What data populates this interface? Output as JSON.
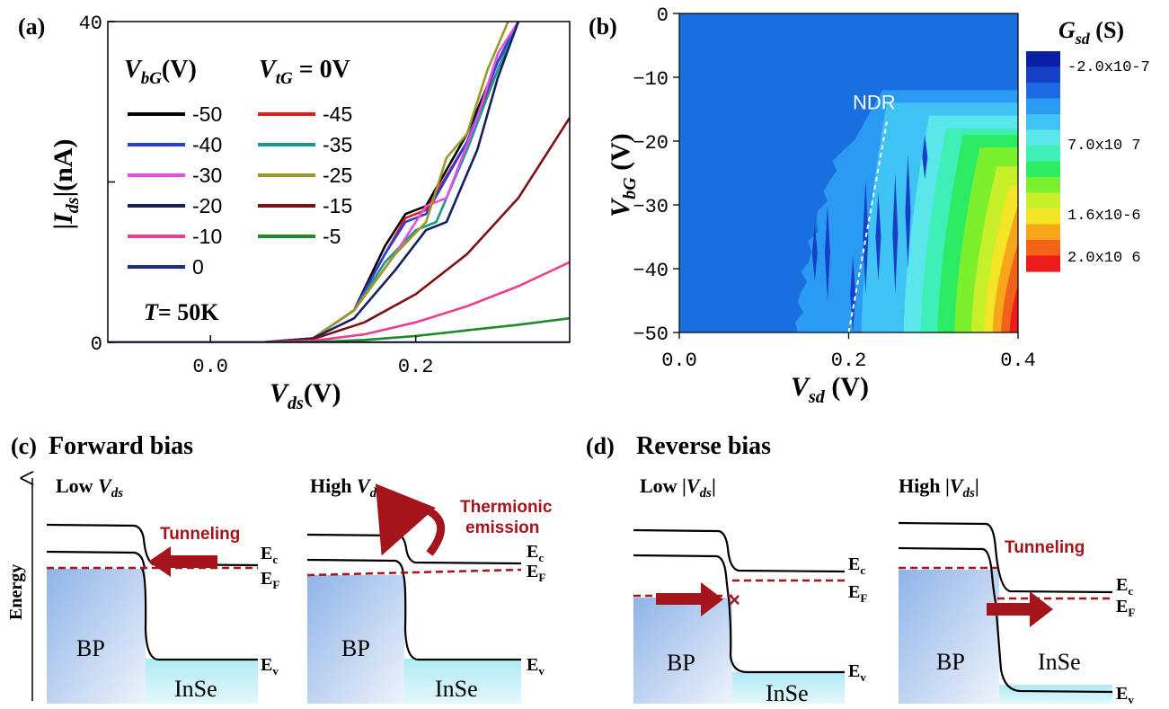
{
  "panel_labels": {
    "a": "(a)",
    "b": "(b)",
    "c": "(c)",
    "d": "(d)"
  },
  "chart_data": [
    {
      "type": "line",
      "panel": "a",
      "xlabel": "V_ds(V)",
      "ylabel": "|I_ds|(nA)",
      "xlim": [
        -0.1,
        0.35
      ],
      "ylim": [
        0,
        40
      ],
      "x_ticks": [
        0.0,
        0.2
      ],
      "y_ticks": [
        0,
        40
      ],
      "legend_title": "V_bG(V)",
      "legend_title_2": "V_tG = 0V",
      "annotation": "T= 50K",
      "series": [
        {
          "name": "-50",
          "color": "#000000",
          "x": [
            -0.1,
            0.05,
            0.1,
            0.14,
            0.17,
            0.19,
            0.21,
            0.25,
            0.28,
            0.3
          ],
          "y": [
            0,
            0,
            0.5,
            4,
            12,
            16,
            17,
            26,
            35,
            40
          ]
        },
        {
          "name": "-45",
          "color": "#e21b1b",
          "x": [
            -0.1,
            0.05,
            0.1,
            0.14,
            0.17,
            0.19,
            0.21,
            0.25,
            0.28,
            0.3
          ],
          "y": [
            0,
            0,
            0.5,
            4,
            11,
            15.5,
            16.5,
            25,
            34,
            40
          ]
        },
        {
          "name": "-40",
          "color": "#2c3ad6",
          "x": [
            -0.1,
            0.05,
            0.1,
            0.14,
            0.17,
            0.19,
            0.21,
            0.25,
            0.28,
            0.3
          ],
          "y": [
            0,
            0,
            0.5,
            4,
            11,
            15,
            16,
            25,
            35,
            40
          ]
        },
        {
          "name": "-35",
          "color": "#1e9690",
          "x": [
            -0.1,
            0.05,
            0.1,
            0.14,
            0.17,
            0.2,
            0.22,
            0.25,
            0.28,
            0.3
          ],
          "y": [
            0,
            0,
            0.5,
            4,
            10,
            14,
            15,
            24,
            34,
            40
          ]
        },
        {
          "name": "-30",
          "color": "#e44ee4",
          "x": [
            -0.1,
            0.05,
            0.1,
            0.14,
            0.18,
            0.21,
            0.23,
            0.26,
            0.28,
            0.3
          ],
          "y": [
            0,
            0,
            0.5,
            4,
            11,
            17,
            18,
            28,
            36,
            40
          ]
        },
        {
          "name": "-25",
          "color": "#9a9a28",
          "x": [
            -0.1,
            0.05,
            0.1,
            0.14,
            0.18,
            0.21,
            0.23,
            0.25,
            0.27,
            0.29
          ],
          "y": [
            0,
            0,
            0.5,
            4,
            11,
            15,
            23,
            26,
            34,
            40
          ]
        },
        {
          "name": "-20",
          "color": "#13215c",
          "x": [
            -0.1,
            0.05,
            0.1,
            0.14,
            0.18,
            0.21,
            0.23,
            0.26,
            0.28,
            0.3
          ],
          "y": [
            0,
            0,
            0.5,
            3,
            9,
            14,
            15,
            24,
            33,
            40
          ]
        },
        {
          "name": "-15",
          "color": "#7c1216",
          "x": [
            -0.1,
            0.05,
            0.1,
            0.15,
            0.2,
            0.25,
            0.3,
            0.35
          ],
          "y": [
            0,
            0,
            0.4,
            2.5,
            6,
            11,
            18,
            28
          ]
        },
        {
          "name": "-10",
          "color": "#ea3f8e",
          "x": [
            -0.1,
            0.05,
            0.1,
            0.15,
            0.2,
            0.25,
            0.3,
            0.35
          ],
          "y": [
            0,
            0,
            0.2,
            1,
            2.5,
            4.5,
            7,
            10
          ]
        },
        {
          "name": "-5",
          "color": "#1f8a2c",
          "x": [
            -0.1,
            0.05,
            0.1,
            0.15,
            0.2,
            0.25,
            0.3,
            0.35
          ],
          "y": [
            0,
            0,
            0.05,
            0.3,
            0.8,
            1.5,
            2.2,
            3
          ]
        },
        {
          "name": "0",
          "color": "#1b2a8c",
          "x": [
            -0.1,
            0.35
          ],
          "y": [
            0,
            0
          ]
        }
      ]
    },
    {
      "type": "heatmap",
      "panel": "b",
      "xlabel": "V_sd (V)",
      "ylabel": "V_bG (V)",
      "xlim": [
        0.0,
        0.4
      ],
      "ylim": [
        -50,
        0
      ],
      "x_ticks": [
        0.0,
        0.2,
        0.4
      ],
      "y_ticks": [
        0,
        -10,
        -20,
        -30,
        -40,
        -50
      ],
      "colorbar_title": "G_sd (S)",
      "colorbar_ticks": [
        "-2.0x10-7",
        "7.0x10 7",
        "1.6x10-6",
        "2.0x10 6"
      ],
      "colorbar_colors": [
        "#0a1fa3",
        "#1540c8",
        "#1e6ae3",
        "#2b9af2",
        "#3fc3f4",
        "#5ae6ea",
        "#3ef0b8",
        "#2cec64",
        "#7cf02c",
        "#c8f02a",
        "#f2e626",
        "#f7a51a",
        "#f26218",
        "#ee1b1b"
      ],
      "annotation": "NDR",
      "background_color": "#1a6fe0"
    }
  ],
  "diagrams": {
    "c_title": "Forward bias",
    "d_title": "Reverse bias",
    "energy_label": "Energy",
    "low_vds": "Low V_ds",
    "high_vds": "High V_ds",
    "low_abs_vds": "Low |V_ds|",
    "high_abs_vds": "High |V_ds|",
    "tunneling": "Tunneling",
    "thermionic_line1": "Thermionic",
    "thermionic_line2": "emission",
    "bp": "BP",
    "inse": "InSe",
    "ec": "E_c",
    "ef": "E_F",
    "ev": "E_v"
  }
}
